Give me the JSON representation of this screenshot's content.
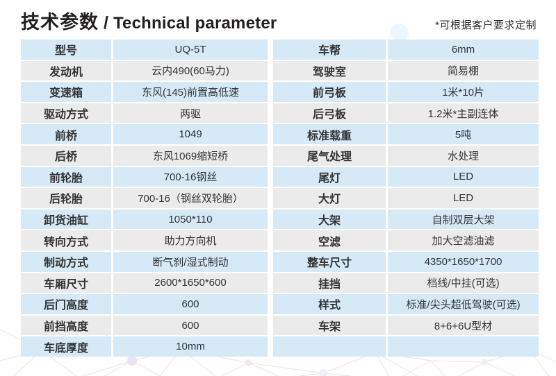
{
  "header": {
    "title_zh": "技术参数",
    "separator": "/",
    "title_en": "Technical parameter",
    "note": "*可根据客户要求定制"
  },
  "tables": [
    {
      "name": "left-spec-table",
      "rows": [
        {
          "label": "型号",
          "value": "UQ-5T"
        },
        {
          "label": "发动机",
          "value": "云内490(60马力)"
        },
        {
          "label": "变速箱",
          "value": "东风(145)前置高低速"
        },
        {
          "label": "驱动方式",
          "value": "两驱"
        },
        {
          "label": "前桥",
          "value": "1049"
        },
        {
          "label": "后桥",
          "value": "东风1069缩短桥"
        },
        {
          "label": "前轮胎",
          "value": "700-16钢丝"
        },
        {
          "label": "后轮胎",
          "value": "700-16（钢丝双轮胎）"
        },
        {
          "label": "卸货油缸",
          "value": "1050*110"
        },
        {
          "label": "转向方式",
          "value": "助力方向机"
        },
        {
          "label": "制动方式",
          "value": "断气刹/湿式制动"
        },
        {
          "label": "车厢尺寸",
          "value": "2600*1650*600"
        },
        {
          "label": "后门高度",
          "value": "600"
        },
        {
          "label": "前挡高度",
          "value": "600"
        },
        {
          "label": "车底厚度",
          "value": "10mm"
        }
      ]
    },
    {
      "name": "right-spec-table",
      "rows": [
        {
          "label": "车帮",
          "value": "6mm"
        },
        {
          "label": "驾驶室",
          "value": "简易棚"
        },
        {
          "label": "前弓板",
          "value": "1米*10片"
        },
        {
          "label": "后弓板",
          "value": "1.2米*主副连体"
        },
        {
          "label": "标准载重",
          "value": "5吨"
        },
        {
          "label": "尾气处理",
          "value": "水处理"
        },
        {
          "label": "尾灯",
          "value": "LED"
        },
        {
          "label": "大灯",
          "value": "LED"
        },
        {
          "label": "大架",
          "value": "自制双层大架"
        },
        {
          "label": "空滤",
          "value": "加大空滤油滤"
        },
        {
          "label": "整车尺寸",
          "value": "4350*1650*1700"
        },
        {
          "label": "挂挡",
          "value": "档线/中挂(可选)"
        },
        {
          "label": "样式",
          "value": "标准/尖头超低驾驶(可选)"
        },
        {
          "label": "车架",
          "value": "8+6+6U型材"
        },
        {
          "label": "",
          "value": ""
        }
      ]
    }
  ],
  "colors": {
    "row_blue": "#d5e9f7",
    "row_grey": "#ebebeb",
    "text": "#333333",
    "title": "#231f20",
    "background": "#ffffff"
  }
}
